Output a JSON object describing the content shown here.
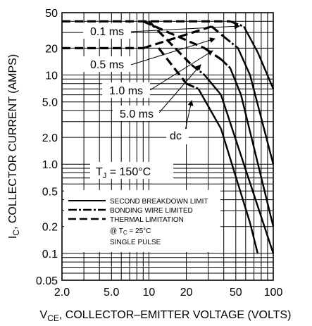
{
  "chart_data": {
    "type": "line",
    "x_scale": "log",
    "y_scale": "log",
    "xlim": [
      2.0,
      100
    ],
    "ylim": [
      0.05,
      50
    ],
    "grid": true,
    "xlabel": {
      "main": "V",
      "sub": "CE",
      "rest": ", COLLECTOR–EMITTER VOLTAGE (VOLTS)"
    },
    "ylabel": {
      "main": "I",
      "sub": "C",
      "rest": ", COLLECTOR CURRENT (AMPS)"
    },
    "x_ticks": [
      {
        "value": 2.0,
        "label": "2.0"
      },
      {
        "value": 5.0,
        "label": "5.0"
      },
      {
        "value": 10,
        "label": "10"
      },
      {
        "value": 20,
        "label": "20"
      },
      {
        "value": 50,
        "label": "50"
      },
      {
        "value": 100,
        "label": "100"
      }
    ],
    "y_ticks": [
      {
        "value": 0.05,
        "label": "0.05"
      },
      {
        "value": 0.1,
        "label": "0.1"
      },
      {
        "value": 0.2,
        "label": "0.2"
      },
      {
        "value": 0.5,
        "label": "0.5"
      },
      {
        "value": 1.0,
        "label": "1.0"
      },
      {
        "value": 2.0,
        "label": "2.0"
      },
      {
        "value": 5.0,
        "label": "5.0"
      },
      {
        "value": 10,
        "label": "10"
      },
      {
        "value": 20,
        "label": "20"
      },
      {
        "value": 50,
        "label": "50"
      }
    ],
    "series": [
      {
        "label": "0.1 ms",
        "points": [
          {
            "x": 2.0,
            "y": 40,
            "seg": "thermal"
          },
          {
            "x": 45,
            "y": 40,
            "seg": "bonding"
          },
          {
            "x": 58,
            "y": 35,
            "seg": "second"
          },
          {
            "x": 75,
            "y": 18,
            "seg": "second"
          },
          {
            "x": 100,
            "y": 7.0
          }
        ]
      },
      {
        "label": "0.5 ms",
        "points": [
          {
            "x": 2.0,
            "y": 20,
            "seg": "thermal"
          },
          {
            "x": 9,
            "y": 20,
            "seg": "thermal"
          },
          {
            "x": 32,
            "y": 35,
            "seg": "thermal"
          },
          {
            "x": 40,
            "y": 27,
            "seg": "bonding"
          },
          {
            "x": 52,
            "y": 20,
            "seg": "second"
          },
          {
            "x": 65,
            "y": 10,
            "seg": "second"
          },
          {
            "x": 100,
            "y": 1.0
          }
        ]
      },
      {
        "label": "1.0 ms",
        "points": [
          {
            "x": 9,
            "y": 40,
            "seg": "thermal"
          },
          {
            "x": 28,
            "y": 20,
            "seg": "thermal"
          },
          {
            "x": 38,
            "y": 15,
            "seg": "bonding"
          },
          {
            "x": 45,
            "y": 12,
            "seg": "second"
          },
          {
            "x": 55,
            "y": 6.0,
            "seg": "second"
          },
          {
            "x": 100,
            "y": 0.2
          }
        ]
      },
      {
        "label": "5.0 ms",
        "points": [
          {
            "x": 10,
            "y": 40,
            "seg": "thermal"
          },
          {
            "x": 22,
            "y": 13,
            "seg": "bonding"
          },
          {
            "x": 28,
            "y": 10,
            "seg": "second"
          },
          {
            "x": 38,
            "y": 6.0,
            "seg": "second"
          },
          {
            "x": 100,
            "y": 0.1
          }
        ]
      },
      {
        "label": "dc",
        "points": [
          {
            "x": 12,
            "y": 20,
            "seg": "thermal"
          },
          {
            "x": 20,
            "y": 8.0,
            "seg": "bonding"
          },
          {
            "x": 25,
            "y": 7.0,
            "seg": "second"
          },
          {
            "x": 38,
            "y": 2.5,
            "seg": "second"
          },
          {
            "x": 65,
            "y": 0.22,
            "seg": "second"
          },
          {
            "x": 75,
            "y": 0.1
          }
        ]
      }
    ],
    "annotations": [
      {
        "text": "0.1 ms"
      },
      {
        "text": "0.5 ms"
      },
      {
        "text": "1.0 ms"
      },
      {
        "text": "5.0 ms"
      },
      {
        "text": "dc"
      },
      {
        "main": "T",
        "sub": "J",
        "rest": " = 150°C"
      }
    ],
    "legend": {
      "placement": "bottom-left",
      "entries": [
        {
          "style": "solid",
          "label": "SECOND BREAKDOWN LIMIT"
        },
        {
          "style": "dash-dot",
          "label": "BONDING WIRE LIMITED"
        },
        {
          "style": "dash",
          "label": "THERMAL LIMITATION"
        }
      ],
      "condition": {
        "prefix": "@ T",
        "sub": "C",
        "rest": " = 25°C"
      },
      "note": "SINGLE PULSE"
    }
  }
}
